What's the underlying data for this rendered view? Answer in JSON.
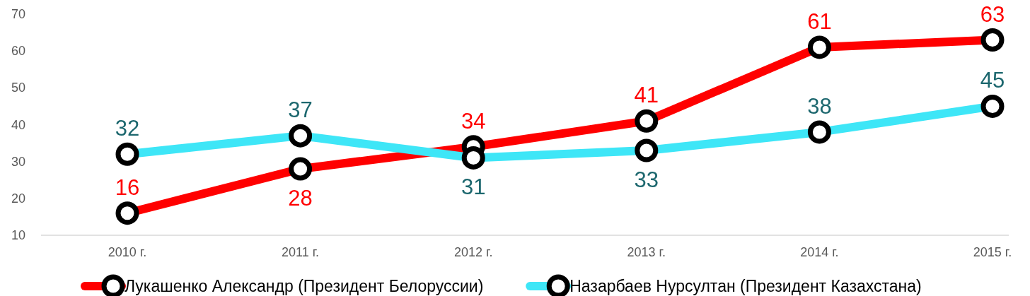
{
  "chart_data": {
    "type": "line",
    "categories": [
      "2010 г.",
      "2011 г.",
      "2012 г.",
      "2013 г.",
      "2014 г.",
      "2015 г."
    ],
    "ylim": [
      10,
      70
    ],
    "yticks": [
      10,
      20,
      30,
      40,
      50,
      60,
      70
    ],
    "grid": false,
    "legend": "bottom",
    "marker": "circle",
    "line_style": "solid",
    "data_labels": true,
    "series": [
      {
        "name": "Лукашенко Александр (Президент Белоруссии)",
        "color": "#ff0000",
        "values": [
          16,
          28,
          34,
          41,
          61,
          63
        ]
      },
      {
        "name": "Назарбаев Нурсултан (Президент Казахстана)",
        "color": "#3ee6f7",
        "values": [
          32,
          37,
          31,
          33,
          38,
          45
        ]
      }
    ]
  }
}
